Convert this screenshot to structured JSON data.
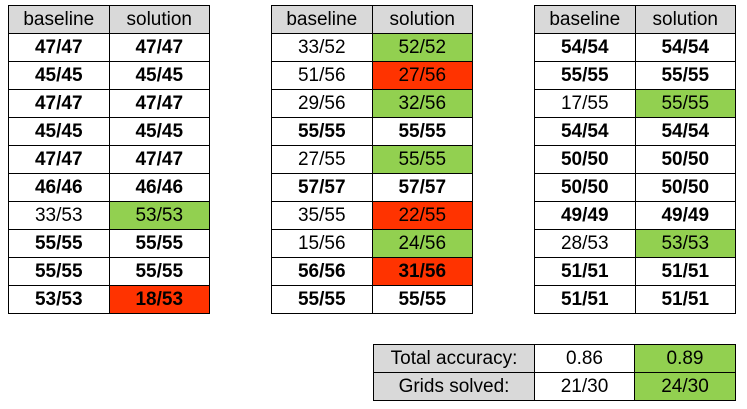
{
  "headers": {
    "baseline": "baseline",
    "solution": "solution"
  },
  "tables": [
    {
      "rows": [
        {
          "baseline": "47/47",
          "solution": "47/47",
          "bold": true,
          "status": ""
        },
        {
          "baseline": "45/45",
          "solution": "45/45",
          "bold": true,
          "status": ""
        },
        {
          "baseline": "47/47",
          "solution": "47/47",
          "bold": true,
          "status": ""
        },
        {
          "baseline": "45/45",
          "solution": "45/45",
          "bold": true,
          "status": ""
        },
        {
          "baseline": "47/47",
          "solution": "47/47",
          "bold": true,
          "status": ""
        },
        {
          "baseline": "46/46",
          "solution": "46/46",
          "bold": true,
          "status": ""
        },
        {
          "baseline": "33/53",
          "solution": "53/53",
          "bold": false,
          "status": "improved"
        },
        {
          "baseline": "55/55",
          "solution": "55/55",
          "bold": true,
          "status": ""
        },
        {
          "baseline": "55/55",
          "solution": "55/55",
          "bold": true,
          "status": ""
        },
        {
          "baseline": "53/53",
          "solution": "18/53",
          "bold": true,
          "status": "worse"
        }
      ]
    },
    {
      "rows": [
        {
          "baseline": "33/52",
          "solution": "52/52",
          "bold": false,
          "status": "improved"
        },
        {
          "baseline": "51/56",
          "solution": "27/56",
          "bold": false,
          "status": "worse"
        },
        {
          "baseline": "29/56",
          "solution": "32/56",
          "bold": false,
          "status": "improved"
        },
        {
          "baseline": "55/55",
          "solution": "55/55",
          "bold": true,
          "status": ""
        },
        {
          "baseline": "27/55",
          "solution": "55/55",
          "bold": false,
          "status": "improved"
        },
        {
          "baseline": "57/57",
          "solution": "57/57",
          "bold": true,
          "status": ""
        },
        {
          "baseline": "35/55",
          "solution": "22/55",
          "bold": false,
          "status": "worse"
        },
        {
          "baseline": "15/56",
          "solution": "24/56",
          "bold": false,
          "status": "improved"
        },
        {
          "baseline": "56/56",
          "solution": "31/56",
          "bold": true,
          "status": "worse"
        },
        {
          "baseline": "55/55",
          "solution": "55/55",
          "bold": true,
          "status": ""
        }
      ]
    },
    {
      "rows": [
        {
          "baseline": "54/54",
          "solution": "54/54",
          "bold": true,
          "status": ""
        },
        {
          "baseline": "55/55",
          "solution": "55/55",
          "bold": true,
          "status": ""
        },
        {
          "baseline": "17/55",
          "solution": "55/55",
          "bold": false,
          "status": "improved"
        },
        {
          "baseline": "54/54",
          "solution": "54/54",
          "bold": true,
          "status": ""
        },
        {
          "baseline": "50/50",
          "solution": "50/50",
          "bold": true,
          "status": ""
        },
        {
          "baseline": "50/50",
          "solution": "50/50",
          "bold": true,
          "status": ""
        },
        {
          "baseline": "49/49",
          "solution": "49/49",
          "bold": true,
          "status": ""
        },
        {
          "baseline": "28/53",
          "solution": "53/53",
          "bold": false,
          "status": "improved"
        },
        {
          "baseline": "51/51",
          "solution": "51/51",
          "bold": true,
          "status": ""
        },
        {
          "baseline": "51/51",
          "solution": "51/51",
          "bold": true,
          "status": ""
        }
      ]
    }
  ],
  "summary": {
    "accuracy_label": "Total accuracy:",
    "accuracy_baseline": "0.86",
    "accuracy_solution": "0.89",
    "solved_label": "Grids solved:",
    "solved_baseline": "21/30",
    "solved_solution": "24/30"
  },
  "colors": {
    "improved": "#92d050",
    "worse": "#ff3300",
    "header": "#d9d9d9"
  }
}
